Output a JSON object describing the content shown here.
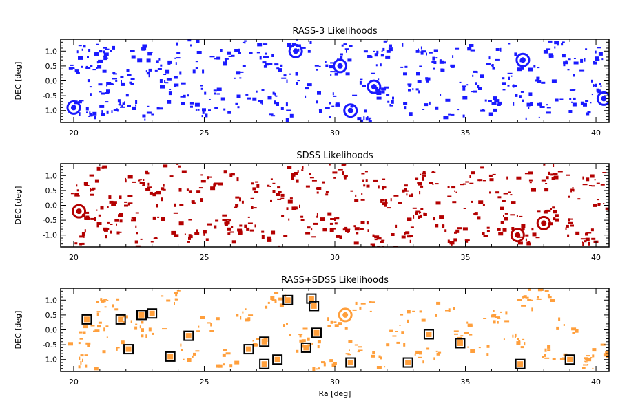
{
  "chart_data": [
    {
      "type": "scatter",
      "title": "RASS-3 Likelihoods",
      "xlabel": "",
      "ylabel": "DEC [deg]",
      "xlim": [
        19.5,
        40.5
      ],
      "ylim": [
        -1.4,
        1.4
      ],
      "xticks": [
        "20",
        "25",
        "30",
        "35",
        "40"
      ],
      "yticks": [
        "1.0",
        "0.5",
        "0.0",
        "-0.5",
        "-1.0"
      ],
      "color": "#1a1aff",
      "points": [
        [
          20.2,
          0.3
        ],
        [
          20.4,
          -0.9
        ],
        [
          20.5,
          1.1
        ],
        [
          20.7,
          0.6
        ],
        [
          21.0,
          -0.3
        ],
        [
          21.3,
          0.9
        ],
        [
          21.4,
          -0.9
        ],
        [
          21.8,
          0.2
        ],
        [
          22.1,
          -0.6
        ],
        [
          22.5,
          1.0
        ],
        [
          22.8,
          0.5
        ],
        [
          23.0,
          -1.1
        ],
        [
          23.5,
          0.8
        ],
        [
          23.7,
          0.1
        ],
        [
          24.0,
          -0.5
        ],
        [
          24.3,
          1.2
        ],
        [
          24.6,
          -1.0
        ],
        [
          25.0,
          0.6
        ],
        [
          25.2,
          -0.2
        ],
        [
          25.5,
          -0.8
        ],
        [
          25.9,
          0.9
        ],
        [
          26.2,
          0.3
        ],
        [
          26.6,
          -0.7
        ],
        [
          26.9,
          1.1
        ],
        [
          27.3,
          -0.5
        ],
        [
          27.6,
          0.7
        ],
        [
          27.9,
          -1.0
        ],
        [
          28.2,
          0.2
        ],
        [
          28.6,
          1.2
        ],
        [
          28.9,
          -0.3
        ],
        [
          29.2,
          0.4
        ],
        [
          29.6,
          -0.9
        ],
        [
          30.0,
          0.5
        ],
        [
          30.3,
          -0.6
        ],
        [
          30.6,
          1.0
        ],
        [
          30.9,
          -1.2
        ],
        [
          31.2,
          0.1
        ],
        [
          31.5,
          0.8
        ],
        [
          31.9,
          -0.4
        ],
        [
          32.2,
          1.1
        ],
        [
          32.5,
          -0.9
        ],
        [
          32.8,
          0.3
        ],
        [
          33.2,
          -0.1
        ],
        [
          33.5,
          0.9
        ],
        [
          33.8,
          -0.7
        ],
        [
          34.2,
          0.6
        ],
        [
          34.5,
          -1.1
        ],
        [
          34.9,
          1.2
        ],
        [
          35.2,
          -0.3
        ],
        [
          35.6,
          0.4
        ],
        [
          35.9,
          -0.8
        ],
        [
          36.3,
          1.0
        ],
        [
          36.6,
          0.0
        ],
        [
          37.0,
          -0.6
        ],
        [
          37.3,
          0.7
        ],
        [
          37.7,
          -1.0
        ],
        [
          38.0,
          0.2
        ],
        [
          38.4,
          1.1
        ],
        [
          38.7,
          -0.4
        ],
        [
          39.1,
          0.5
        ],
        [
          39.4,
          -0.9
        ],
        [
          39.8,
          0.9
        ],
        [
          40.2,
          -0.2
        ]
      ],
      "circles": [
        [
          20.0,
          -0.9
        ],
        [
          30.2,
          0.5
        ],
        [
          31.5,
          -0.2
        ],
        [
          30.6,
          -1.0
        ],
        [
          37.2,
          0.7
        ],
        [
          40.3,
          -0.6
        ],
        [
          28.5,
          1.0
        ]
      ]
    },
    {
      "type": "scatter",
      "title": "SDSS Likelihoods",
      "xlabel": "",
      "ylabel": "DEC [deg]",
      "xlim": [
        19.5,
        40.5
      ],
      "ylim": [
        -1.4,
        1.4
      ],
      "xticks": [
        "20",
        "25",
        "30",
        "35",
        "40"
      ],
      "yticks": [
        "1.0",
        "0.5",
        "0.0",
        "-0.5",
        "-1.0"
      ],
      "color": "#b30000",
      "points": [
        [
          20.0,
          -1.0
        ],
        [
          20.3,
          0.6
        ],
        [
          20.6,
          -0.3
        ],
        [
          21.0,
          1.1
        ],
        [
          21.3,
          -0.8
        ],
        [
          21.7,
          0.2
        ],
        [
          22.0,
          -0.5
        ],
        [
          22.4,
          0.9
        ],
        [
          22.7,
          -1.1
        ],
        [
          23.0,
          0.5
        ],
        [
          23.4,
          -0.2
        ],
        [
          23.7,
          1.2
        ],
        [
          24.1,
          -0.7
        ],
        [
          24.4,
          0.3
        ],
        [
          24.8,
          -1.0
        ],
        [
          25.1,
          0.8
        ],
        [
          25.5,
          -0.4
        ],
        [
          25.8,
          1.0
        ],
        [
          26.2,
          -0.9
        ],
        [
          26.5,
          0.1
        ],
        [
          26.9,
          -0.6
        ],
        [
          27.2,
          0.7
        ],
        [
          27.6,
          -1.1
        ],
        [
          27.9,
          0.4
        ],
        [
          28.3,
          -0.2
        ],
        [
          28.6,
          1.1
        ],
        [
          29.0,
          -0.8
        ],
        [
          29.3,
          0.6
        ],
        [
          29.7,
          -0.5
        ],
        [
          30.0,
          1.2
        ],
        [
          30.4,
          -1.0
        ],
        [
          30.7,
          0.3
        ],
        [
          31.1,
          -0.7
        ],
        [
          31.4,
          0.9
        ],
        [
          31.8,
          -1.1
        ],
        [
          32.1,
          0.1
        ],
        [
          32.5,
          -0.9
        ],
        [
          32.8,
          0.6
        ],
        [
          33.2,
          -0.3
        ],
        [
          33.5,
          1.0
        ],
        [
          33.9,
          -0.6
        ],
        [
          34.2,
          0.4
        ],
        [
          34.6,
          -1.0
        ],
        [
          34.9,
          0.8
        ],
        [
          35.3,
          -0.1
        ],
        [
          35.6,
          1.1
        ],
        [
          36.0,
          -0.8
        ],
        [
          36.3,
          0.2
        ],
        [
          36.7,
          -0.5
        ],
        [
          37.0,
          1.0
        ],
        [
          37.4,
          -1.0
        ],
        [
          37.7,
          0.7
        ],
        [
          38.1,
          -0.3
        ],
        [
          38.4,
          1.2
        ],
        [
          38.8,
          -0.7
        ],
        [
          39.1,
          0.5
        ],
        [
          39.5,
          -1.0
        ],
        [
          39.8,
          0.9
        ],
        [
          40.2,
          0.0
        ]
      ],
      "circles": [
        [
          20.2,
          -0.2
        ],
        [
          37.0,
          -1.0
        ],
        [
          38.0,
          -0.6
        ]
      ]
    },
    {
      "type": "scatter",
      "title": "RASS+SDSS Likelihoods",
      "xlabel": "Ra [deg]",
      "ylabel": "DEC [deg]",
      "xlim": [
        19.5,
        40.5
      ],
      "ylim": [
        -1.4,
        1.4
      ],
      "xticks": [
        "20",
        "25",
        "30",
        "35",
        "40"
      ],
      "yticks": [
        "1.0",
        "0.5",
        "0.0",
        "-0.5",
        "-1.0"
      ],
      "color": "#ff9f3c",
      "points": [
        [
          20.1,
          -0.3
        ],
        [
          20.4,
          -1.0
        ],
        [
          20.8,
          0.1
        ],
        [
          21.2,
          0.8
        ],
        [
          21.5,
          -0.5
        ],
        [
          22.3,
          0.3
        ],
        [
          23.0,
          -0.1
        ],
        [
          23.6,
          1.1
        ],
        [
          24.4,
          -0.7
        ],
        [
          25.1,
          0.2
        ],
        [
          25.8,
          -0.9
        ],
        [
          26.4,
          0.6
        ],
        [
          27.1,
          -0.5
        ],
        [
          27.7,
          1.0
        ],
        [
          28.4,
          0.0
        ],
        [
          28.9,
          -0.4
        ],
        [
          29.5,
          -1.1
        ],
        [
          30.0,
          0.3
        ],
        [
          30.5,
          -0.6
        ],
        [
          31.1,
          0.8
        ],
        [
          31.6,
          -1.0
        ],
        [
          32.3,
          -0.2
        ],
        [
          32.9,
          0.4
        ],
        [
          33.5,
          -0.8
        ],
        [
          34.2,
          0.7
        ],
        [
          34.8,
          0.0
        ],
        [
          35.5,
          -0.6
        ],
        [
          36.1,
          0.5
        ],
        [
          36.8,
          -0.3
        ],
        [
          37.3,
          0.9
        ],
        [
          37.8,
          1.2
        ],
        [
          38.3,
          -0.7
        ],
        [
          38.9,
          0.2
        ],
        [
          39.5,
          -1.1
        ],
        [
          40.2,
          -0.6
        ]
      ],
      "boxes": [
        [
          20.5,
          0.35
        ],
        [
          21.8,
          0.35
        ],
        [
          22.1,
          -0.65
        ],
        [
          22.6,
          0.5
        ],
        [
          23.0,
          0.55
        ],
        [
          23.7,
          -0.9
        ],
        [
          24.4,
          -0.2
        ],
        [
          26.7,
          -0.65
        ],
        [
          27.3,
          -0.4
        ],
        [
          27.3,
          -1.15
        ],
        [
          27.8,
          -1.0
        ],
        [
          28.2,
          1.0
        ],
        [
          28.9,
          -0.6
        ],
        [
          29.1,
          1.05
        ],
        [
          29.2,
          0.8
        ],
        [
          29.3,
          -0.1
        ],
        [
          30.6,
          -1.1
        ],
        [
          32.8,
          -1.1
        ],
        [
          33.6,
          -0.15
        ],
        [
          34.8,
          -0.45
        ],
        [
          37.1,
          -1.15
        ],
        [
          39.0,
          -1.0
        ]
      ],
      "circles": [
        [
          30.4,
          0.5
        ]
      ]
    }
  ]
}
